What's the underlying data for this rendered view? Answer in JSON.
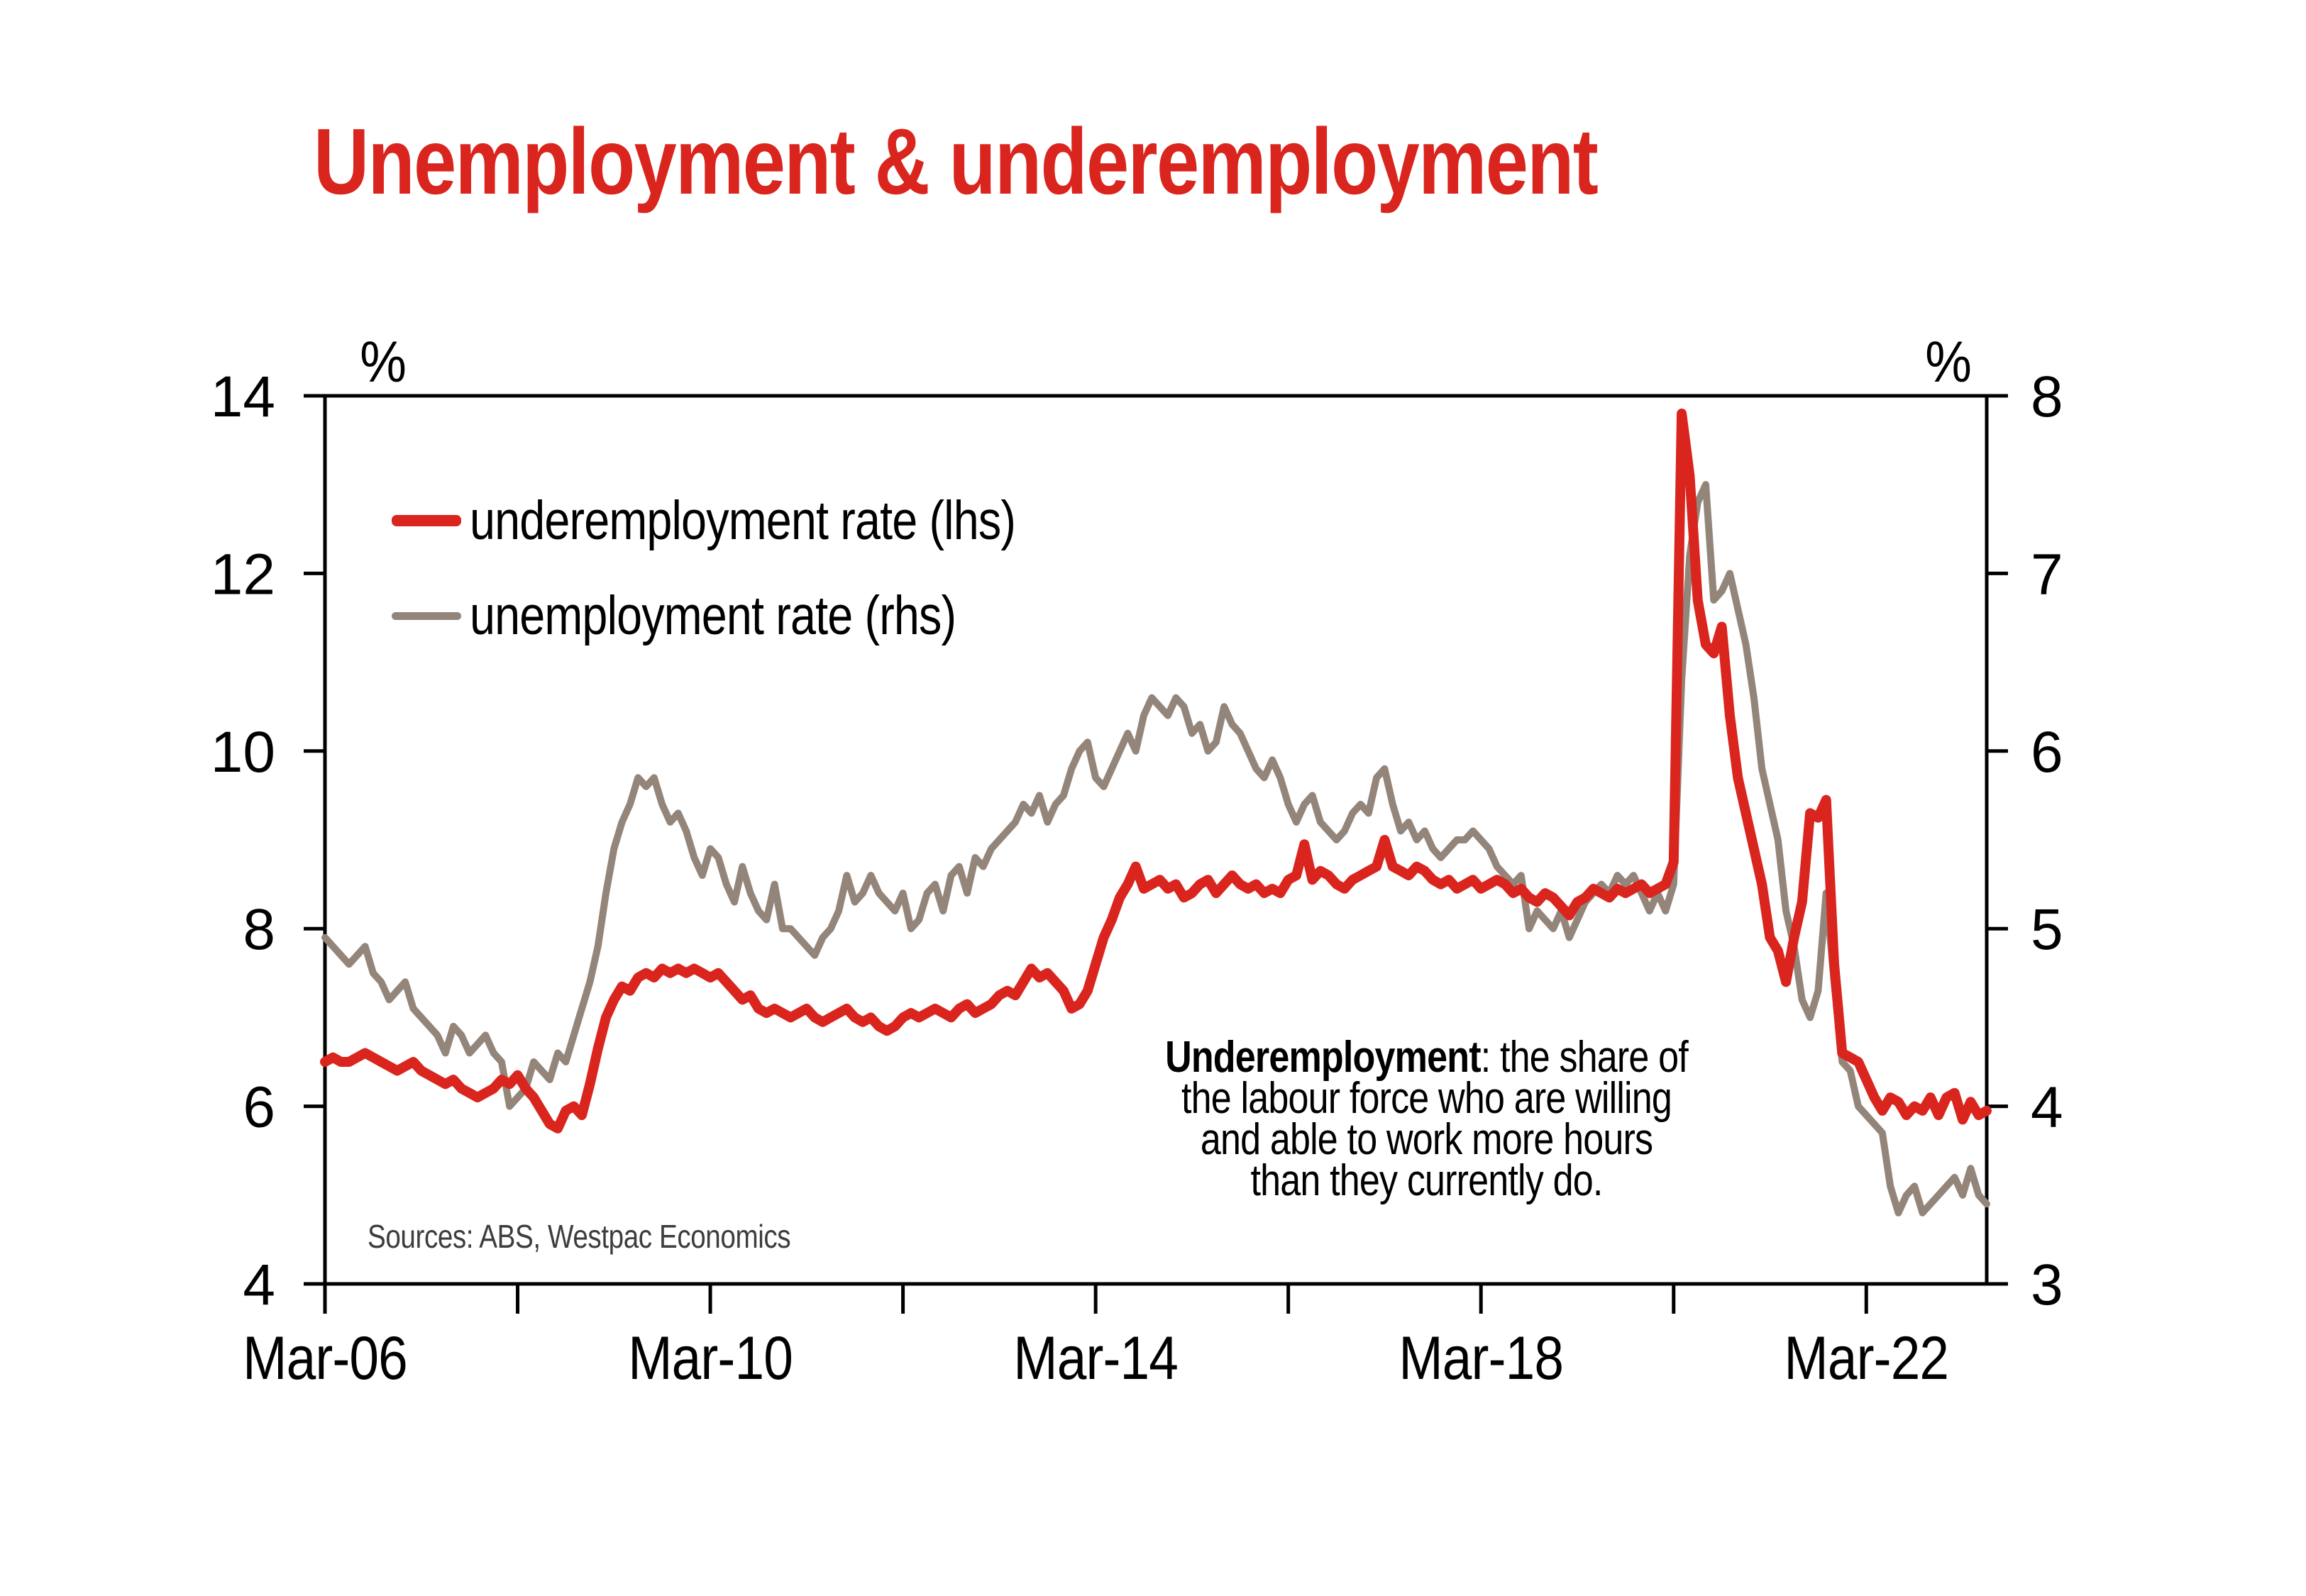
{
  "title": "Unemployment & underemployment",
  "theme": {
    "accent_red": "#d9251d",
    "taupe_grey": "#94857a",
    "axis_black": "#000000",
    "source_grey": "#3d3d3d"
  },
  "legend": {
    "items": [
      {
        "label": "underemployment rate (lhs)"
      },
      {
        "label": "unemployment rate (rhs)"
      }
    ]
  },
  "annotation": {
    "bold": "Underemployment",
    "rest": ": the share of",
    "line2": "the labour force who are willing",
    "line3": "and able to work more hours",
    "line4": "than they currently do."
  },
  "source_note": "Sources: ABS, Westpac Economics",
  "chart_data": {
    "type": "line",
    "title": "Unemployment & underemployment",
    "x_unit": "month",
    "x_start": "Mar-2006",
    "x_end": "Jun-2023",
    "grid": false,
    "legend_position": "top-left-inside",
    "left_axis": {
      "label": "%",
      "min": 4,
      "max": 14,
      "ticks": [
        14,
        12,
        10,
        8,
        6,
        4
      ]
    },
    "right_axis": {
      "label": "%",
      "min": 3,
      "max": 8,
      "ticks": [
        8,
        7,
        6,
        5,
        4,
        3
      ]
    },
    "x_axis": {
      "major_tick_labels": [
        "Mar-06",
        "Mar-10",
        "Mar-14",
        "Mar-18",
        "Mar-22"
      ],
      "major_tick_month_indices": [
        0,
        48,
        96,
        144,
        192
      ],
      "all_tick_month_indices": [
        0,
        24,
        48,
        72,
        96,
        120,
        144,
        168,
        192
      ]
    },
    "series": [
      {
        "name": "underemployment rate (lhs)",
        "axis": "lhs",
        "color": "#d9251d",
        "stroke_width": 14,
        "values": [
          6.5,
          6.55,
          6.5,
          6.5,
          6.55,
          6.6,
          6.55,
          6.5,
          6.45,
          6.4,
          6.45,
          6.5,
          6.4,
          6.35,
          6.3,
          6.25,
          6.3,
          6.2,
          6.15,
          6.1,
          6.15,
          6.2,
          6.3,
          6.25,
          6.35,
          6.2,
          6.1,
          5.95,
          5.8,
          5.75,
          5.95,
          6.0,
          5.9,
          6.25,
          6.65,
          7.0,
          7.2,
          7.35,
          7.3,
          7.45,
          7.5,
          7.45,
          7.55,
          7.5,
          7.55,
          7.5,
          7.55,
          7.5,
          7.45,
          7.5,
          7.4,
          7.3,
          7.2,
          7.25,
          7.1,
          7.05,
          7.1,
          7.05,
          7.0,
          7.05,
          7.1,
          7.0,
          6.95,
          7.0,
          7.05,
          7.1,
          7.0,
          6.95,
          7.0,
          6.9,
          6.85,
          6.9,
          7.0,
          7.05,
          7.0,
          7.05,
          7.1,
          7.05,
          7.0,
          7.1,
          7.15,
          7.05,
          7.1,
          7.15,
          7.25,
          7.3,
          7.25,
          7.4,
          7.55,
          7.45,
          7.5,
          7.4,
          7.3,
          7.1,
          7.15,
          7.3,
          7.6,
          7.9,
          8.1,
          8.35,
          8.5,
          8.7,
          8.45,
          8.5,
          8.55,
          8.45,
          8.5,
          8.35,
          8.4,
          8.5,
          8.55,
          8.4,
          8.5,
          8.6,
          8.5,
          8.45,
          8.5,
          8.4,
          8.45,
          8.4,
          8.55,
          8.6,
          8.95,
          8.55,
          8.65,
          8.6,
          8.5,
          8.45,
          8.55,
          8.6,
          8.65,
          8.7,
          9.0,
          8.7,
          8.65,
          8.6,
          8.7,
          8.65,
          8.55,
          8.5,
          8.55,
          8.45,
          8.5,
          8.55,
          8.45,
          8.5,
          8.55,
          8.5,
          8.4,
          8.45,
          8.35,
          8.3,
          8.4,
          8.35,
          8.25,
          8.15,
          8.3,
          8.35,
          8.45,
          8.4,
          8.35,
          8.45,
          8.4,
          8.45,
          8.5,
          8.4,
          8.45,
          8.5,
          8.75,
          13.8,
          13.1,
          11.7,
          11.2,
          11.1,
          11.4,
          10.4,
          9.7,
          9.3,
          8.9,
          8.5,
          7.9,
          7.75,
          7.4,
          7.9,
          8.3,
          9.3,
          9.25,
          9.45,
          7.6,
          6.6,
          6.55,
          6.5,
          6.3,
          6.1,
          5.95,
          6.1,
          6.05,
          5.9,
          6.0,
          5.95,
          6.1,
          5.9,
          6.1,
          6.15,
          5.85,
          6.05,
          5.9,
          5.95
        ]
      },
      {
        "name": "unemployment rate (rhs)",
        "axis": "rhs",
        "color": "#94857a",
        "stroke_width": 10,
        "values": [
          4.95,
          4.9,
          4.85,
          4.8,
          4.85,
          4.9,
          4.75,
          4.7,
          4.6,
          4.65,
          4.7,
          4.55,
          4.5,
          4.45,
          4.4,
          4.3,
          4.45,
          4.4,
          4.3,
          4.35,
          4.4,
          4.3,
          4.25,
          4.0,
          4.05,
          4.1,
          4.25,
          4.2,
          4.15,
          4.3,
          4.25,
          4.4,
          4.55,
          4.7,
          4.9,
          5.2,
          5.45,
          5.6,
          5.7,
          5.85,
          5.8,
          5.85,
          5.7,
          5.6,
          5.65,
          5.55,
          5.4,
          5.3,
          5.45,
          5.4,
          5.25,
          5.15,
          5.35,
          5.2,
          5.1,
          5.05,
          5.25,
          5.0,
          5.0,
          4.95,
          4.9,
          4.85,
          4.95,
          5.0,
          5.1,
          5.3,
          5.15,
          5.2,
          5.3,
          5.2,
          5.15,
          5.1,
          5.2,
          5.0,
          5.05,
          5.2,
          5.25,
          5.1,
          5.3,
          5.35,
          5.2,
          5.4,
          5.35,
          5.45,
          5.5,
          5.55,
          5.6,
          5.7,
          5.65,
          5.75,
          5.6,
          5.7,
          5.75,
          5.9,
          6.0,
          6.05,
          5.85,
          5.8,
          5.9,
          6.0,
          6.1,
          6.0,
          6.2,
          6.3,
          6.25,
          6.2,
          6.3,
          6.25,
          6.1,
          6.15,
          6.0,
          6.05,
          6.25,
          6.15,
          6.1,
          6.0,
          5.9,
          5.85,
          5.95,
          5.85,
          5.7,
          5.6,
          5.7,
          5.75,
          5.6,
          5.55,
          5.5,
          5.55,
          5.65,
          5.7,
          5.65,
          5.85,
          5.9,
          5.7,
          5.55,
          5.6,
          5.5,
          5.55,
          5.45,
          5.4,
          5.45,
          5.5,
          5.5,
          5.55,
          5.5,
          5.45,
          5.35,
          5.3,
          5.25,
          5.3,
          5.0,
          5.1,
          5.05,
          5.0,
          5.1,
          4.95,
          5.05,
          5.15,
          5.2,
          5.25,
          5.2,
          5.3,
          5.25,
          5.3,
          5.2,
          5.1,
          5.2,
          5.1,
          5.25,
          6.4,
          7.1,
          7.4,
          7.5,
          6.85,
          6.9,
          7.0,
          6.8,
          6.6,
          6.3,
          5.9,
          5.7,
          5.5,
          5.1,
          4.9,
          4.6,
          4.5,
          4.65,
          5.2,
          4.7,
          4.25,
          4.2,
          4.0,
          3.95,
          3.9,
          3.85,
          3.55,
          3.4,
          3.5,
          3.55,
          3.4,
          3.45,
          3.5,
          3.55,
          3.6,
          3.5,
          3.65,
          3.5,
          3.45
        ]
      }
    ]
  }
}
